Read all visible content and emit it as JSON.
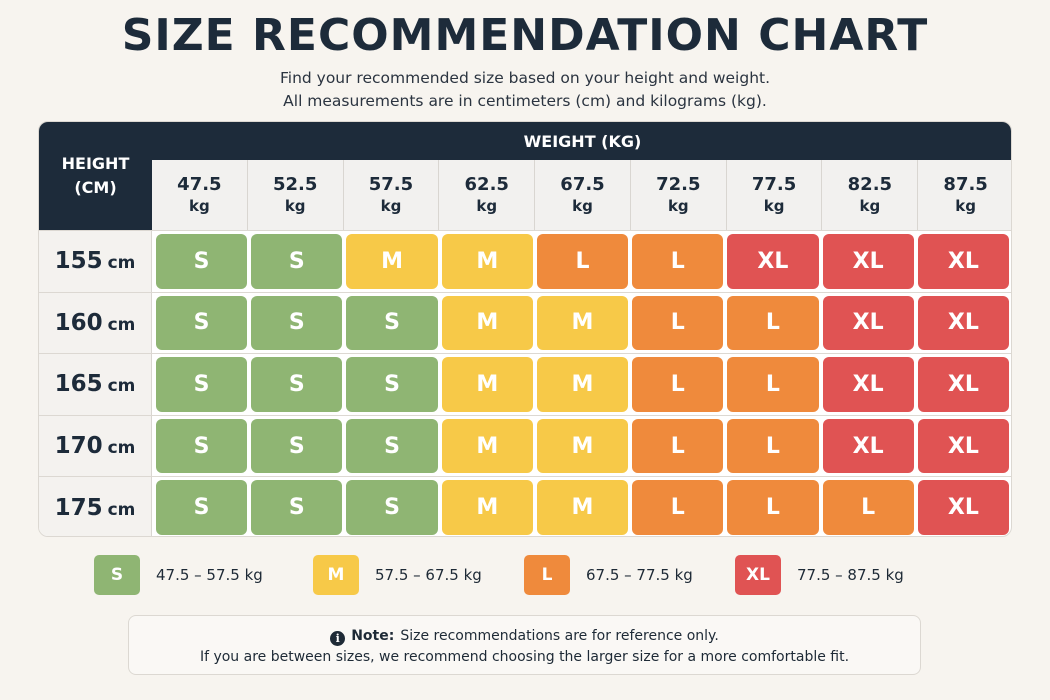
{
  "title": "SIZE RECOMMENDATION CHART",
  "subtitle_line1": "Find your recommended size based on your height and weight.",
  "subtitle_line2": "All measurements are in centimeters (cm) and kilograms (kg).",
  "chart_data": {
    "type": "table",
    "row_header_line1": "HEIGHT",
    "row_header_line2": "(CM)",
    "column_group_header": "WEIGHT (KG)",
    "weight_unit": "kg",
    "height_unit": "cm",
    "weights": [
      "47.5",
      "52.5",
      "57.5",
      "62.5",
      "67.5",
      "72.5",
      "77.5",
      "82.5",
      "87.5"
    ],
    "heights": [
      "155",
      "160",
      "165",
      "170",
      "175"
    ],
    "sizes": [
      [
        "S",
        "S",
        "M",
        "M",
        "L",
        "L",
        "XL",
        "XL",
        "XL"
      ],
      [
        "S",
        "S",
        "S",
        "M",
        "M",
        "L",
        "L",
        "XL",
        "XL"
      ],
      [
        "S",
        "S",
        "S",
        "M",
        "M",
        "L",
        "L",
        "XL",
        "XL"
      ],
      [
        "S",
        "S",
        "S",
        "M",
        "M",
        "L",
        "L",
        "XL",
        "XL"
      ],
      [
        "S",
        "S",
        "S",
        "M",
        "M",
        "L",
        "L",
        "L",
        "XL"
      ]
    ],
    "size_colors": {
      "S": "#8fb573",
      "M": "#f7c948",
      "L": "#ef8a3c",
      "XL": "#e05353"
    }
  },
  "legend": [
    {
      "size": "S",
      "range": "47.5 – 57.5 kg"
    },
    {
      "size": "M",
      "range": "57.5 – 67.5 kg"
    },
    {
      "size": "L",
      "range": "67.5 – 77.5 kg"
    },
    {
      "size": "XL",
      "range": "77.5 – 87.5 kg"
    }
  ],
  "note": {
    "icon": "info-icon",
    "icon_glyph": "i",
    "label": "Note:",
    "line1": "Size recommendations are for reference only.",
    "line2": "If you are between sizes, we recommend choosing the larger size for a more comfortable fit."
  }
}
